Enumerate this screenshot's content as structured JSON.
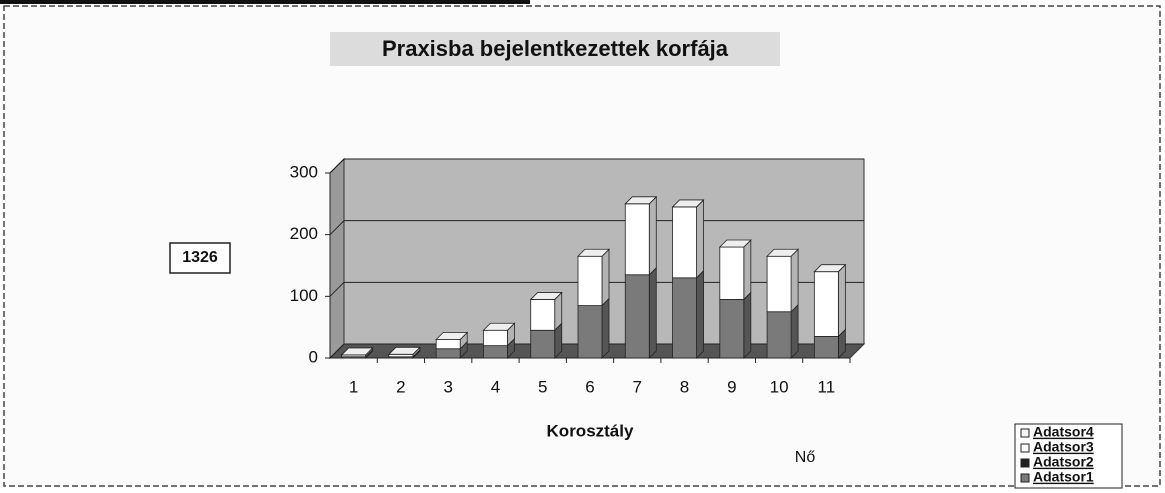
{
  "chart_data": {
    "type": "bar",
    "stacked": true,
    "title": "Praxisba bejelentkezettek korfája",
    "annotations": [
      "1326",
      "Nő"
    ],
    "x_label": "Korosztály",
    "categories": [
      "1",
      "2",
      "3",
      "4",
      "5",
      "6",
      "7",
      "8",
      "9",
      "10",
      "11"
    ],
    "series": [
      {
        "name": "Adatsor1",
        "color": "#7a7a7a",
        "values": [
          2,
          2,
          15,
          20,
          45,
          85,
          135,
          130,
          95,
          75,
          35
        ]
      },
      {
        "name": "Adatsor2",
        "color": "#222222",
        "values": [
          0,
          0,
          0,
          0,
          0,
          0,
          0,
          0,
          0,
          0,
          0
        ]
      },
      {
        "name": "Adatsor3",
        "color": "#ffffff",
        "values": [
          3,
          4,
          15,
          25,
          50,
          80,
          115,
          115,
          85,
          90,
          105
        ]
      },
      {
        "name": "Adatsor4",
        "color": "#f4f4f4",
        "values": [
          0,
          0,
          0,
          0,
          0,
          0,
          0,
          0,
          0,
          0,
          0
        ]
      }
    ],
    "ylim": [
      0,
      300
    ],
    "yticks": [
      0,
      100,
      200,
      300
    ],
    "grid": true,
    "legend": "lower right"
  }
}
